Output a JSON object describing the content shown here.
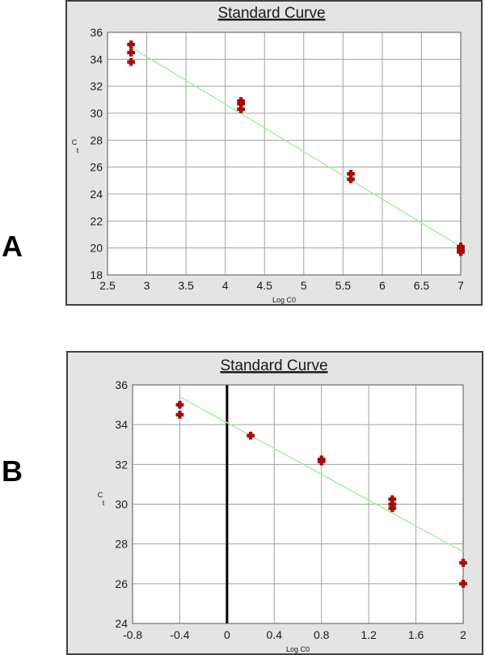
{
  "panels": [
    {
      "letter": "A"
    },
    {
      "letter": "B"
    }
  ],
  "colors": {
    "frame_bg": "#e4e4e4",
    "plot_bg": "#ffffff",
    "grid": "#a0a0a0",
    "fit_line": "#a6f0a0",
    "marker": "#cc0000",
    "marker_outline": "#6a0000",
    "zero_line": "#000000"
  },
  "chart_data": [
    {
      "type": "scatter",
      "title": "Standard Curve",
      "xlabel": "Log C0",
      "ylabel": "C t",
      "xlim": [
        2.5,
        7
      ],
      "ylim": [
        18,
        36
      ],
      "xticks": [
        "2.5",
        "3",
        "3.5",
        "4",
        "4.5",
        "5",
        "5.5",
        "6",
        "6.5",
        "7"
      ],
      "yticks": [
        "18",
        "20",
        "22",
        "24",
        "26",
        "28",
        "30",
        "32",
        "34",
        "36"
      ],
      "grid": true,
      "points": [
        {
          "x": 2.8,
          "y": 35.1
        },
        {
          "x": 2.8,
          "y": 34.5
        },
        {
          "x": 2.8,
          "y": 33.8
        },
        {
          "x": 4.2,
          "y": 30.9
        },
        {
          "x": 4.2,
          "y": 30.7
        },
        {
          "x": 4.2,
          "y": 30.3
        },
        {
          "x": 5.6,
          "y": 25.5
        },
        {
          "x": 5.6,
          "y": 25.1
        },
        {
          "x": 7.0,
          "y": 20.1
        },
        {
          "x": 7.0,
          "y": 19.9
        },
        {
          "x": 7.0,
          "y": 19.7
        }
      ],
      "fit_line": [
        {
          "x": 2.8,
          "y": 34.9
        },
        {
          "x": 7.0,
          "y": 20.1
        }
      ]
    },
    {
      "type": "scatter",
      "title": "Standard Curve",
      "xlabel": "Log C0",
      "ylabel": "C t",
      "xlim": [
        -0.8,
        2
      ],
      "ylim": [
        24,
        36
      ],
      "xticks": [
        "-0.8",
        "-0.4",
        "0",
        "0.4",
        "0.8",
        "1.2",
        "1.6",
        "2"
      ],
      "yticks": [
        "24",
        "26",
        "28",
        "30",
        "32",
        "34",
        "36"
      ],
      "grid": true,
      "points": [
        {
          "x": -0.4,
          "y": 35.0
        },
        {
          "x": -0.4,
          "y": 34.5
        },
        {
          "x": 0.2,
          "y": 33.45
        },
        {
          "x": 0.8,
          "y": 32.25
        },
        {
          "x": 0.8,
          "y": 32.15
        },
        {
          "x": 1.4,
          "y": 30.25
        },
        {
          "x": 1.4,
          "y": 30.0
        },
        {
          "x": 1.4,
          "y": 29.8
        },
        {
          "x": 2.0,
          "y": 27.05
        },
        {
          "x": 2.0,
          "y": 26.0
        }
      ],
      "fit_line": [
        {
          "x": -0.4,
          "y": 35.4
        },
        {
          "x": 2.0,
          "y": 27.6
        }
      ]
    }
  ]
}
